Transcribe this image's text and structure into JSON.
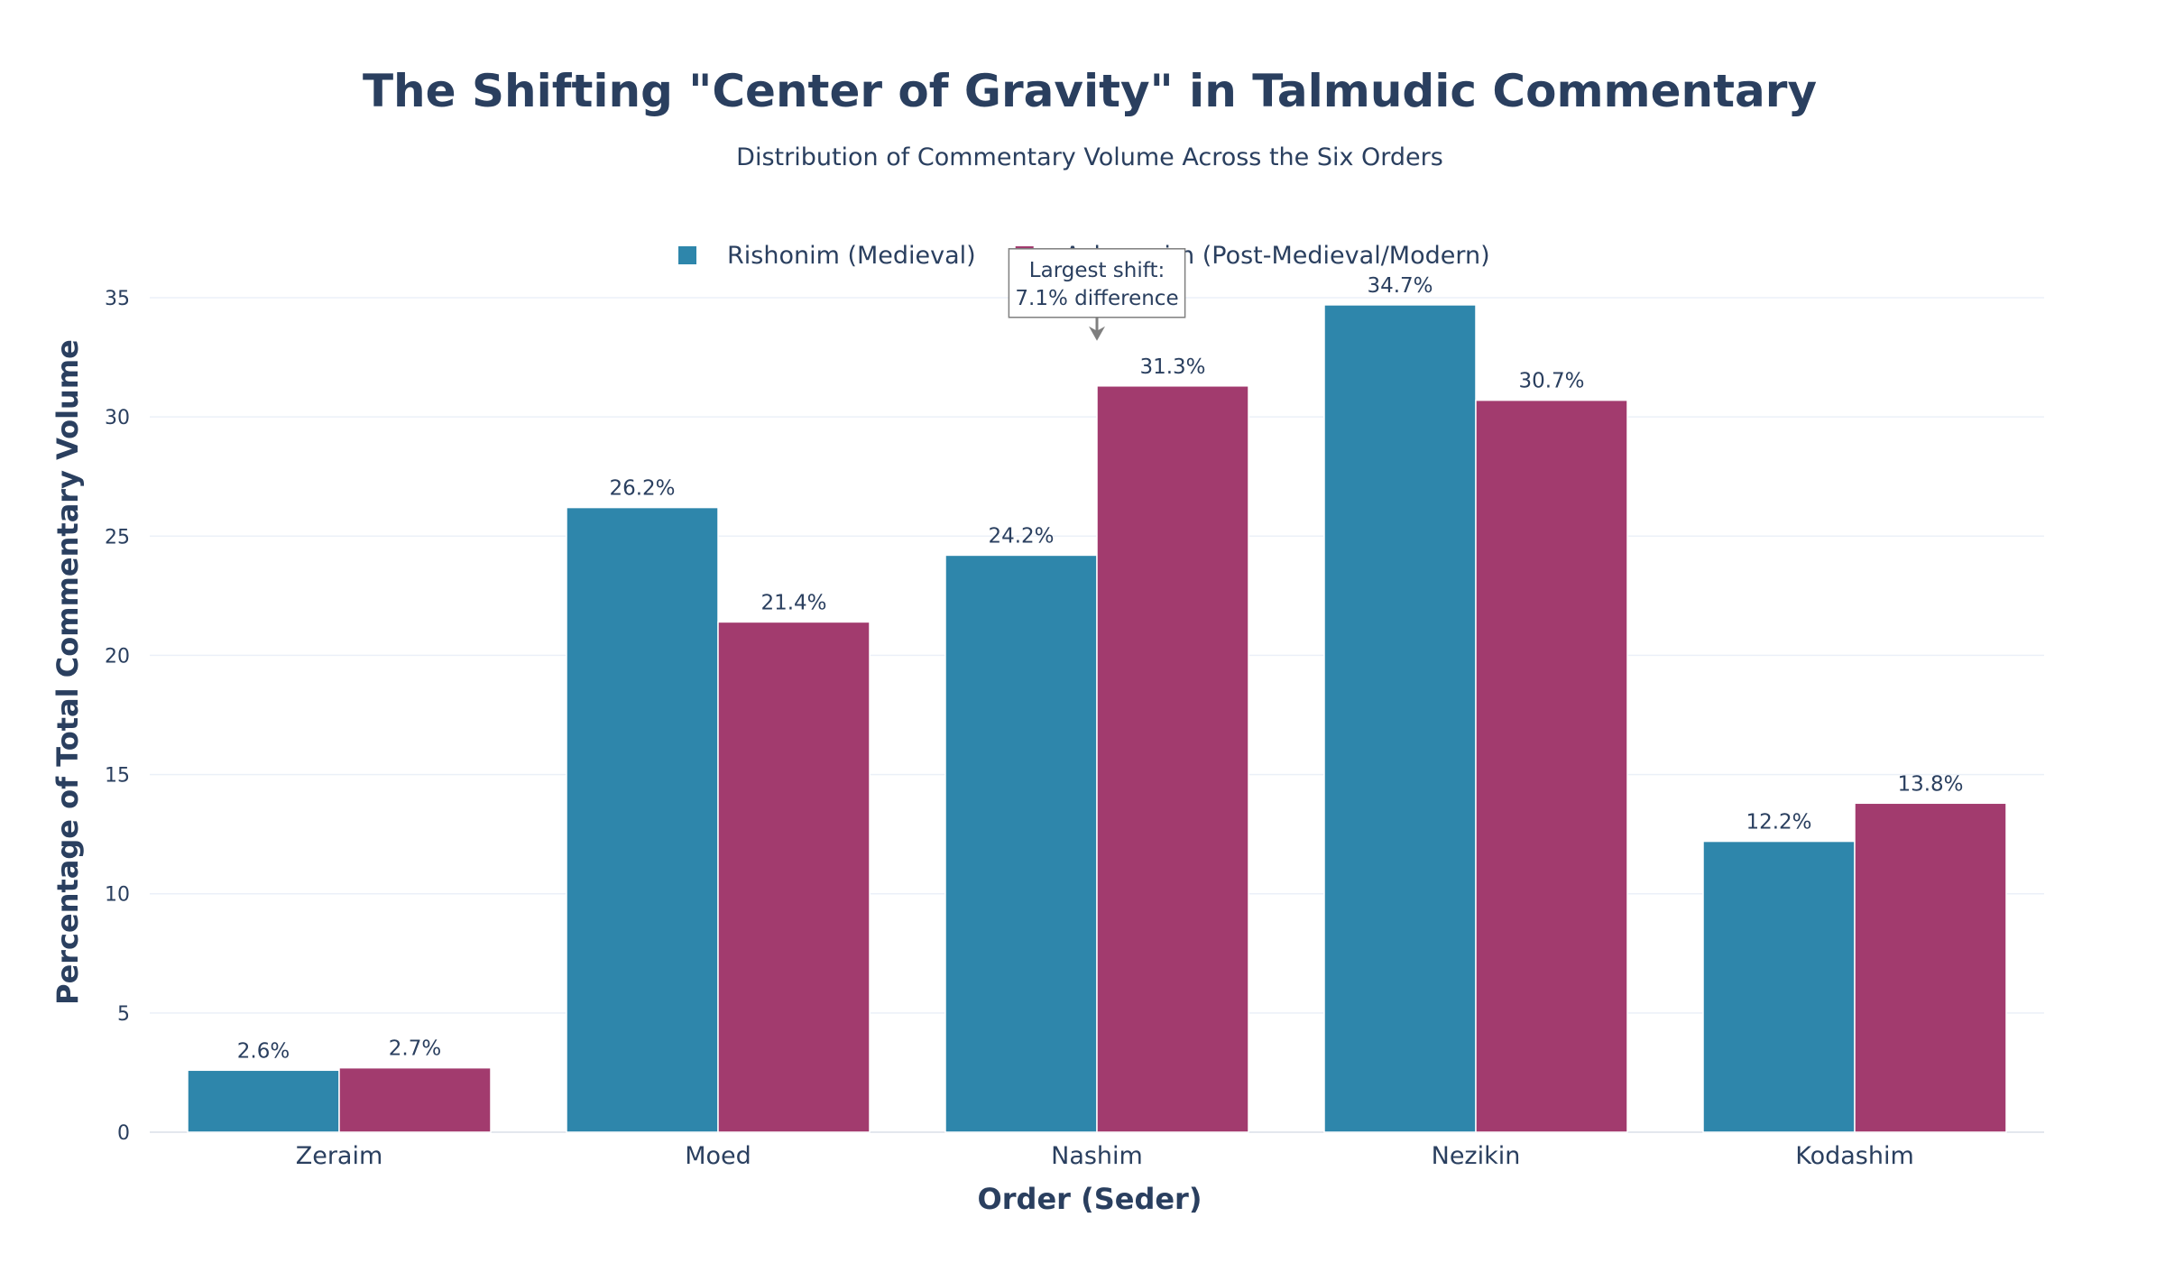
{
  "chart_data": {
    "type": "bar",
    "title": "The Shifting \"Center of Gravity\" in Talmudic Commentary",
    "subtitle": "Distribution of Commentary Volume Across the Six Orders",
    "xlabel": "Order (Seder)",
    "ylabel": "Percentage of Total Commentary Volume",
    "categories": [
      "Zeraim",
      "Moed",
      "Nashim",
      "Nezikin",
      "Kodashim"
    ],
    "series": [
      {
        "name": "Rishonim (Medieval)",
        "color": "#2e86ab",
        "values": [
          2.6,
          26.2,
          24.2,
          34.7,
          12.2
        ],
        "labels": [
          "2.6%",
          "26.2%",
          "24.2%",
          "34.7%",
          "12.2%"
        ]
      },
      {
        "name": "Acharonim (Post-Medieval/Modern)",
        "color": "#a23b6e",
        "values": [
          2.7,
          21.4,
          31.3,
          30.7,
          13.8
        ],
        "labels": [
          "2.7%",
          "21.4%",
          "31.3%",
          "30.7%",
          "13.8%"
        ]
      }
    ],
    "ylim": [
      0,
      35
    ],
    "yticks": [
      0,
      5,
      10,
      15,
      20,
      25,
      30,
      35
    ],
    "grid": true,
    "legend": "top-center",
    "annotation": {
      "category": "Nashim",
      "value": 31.3,
      "lines": [
        "Largest shift:",
        "7.1% difference"
      ]
    }
  }
}
